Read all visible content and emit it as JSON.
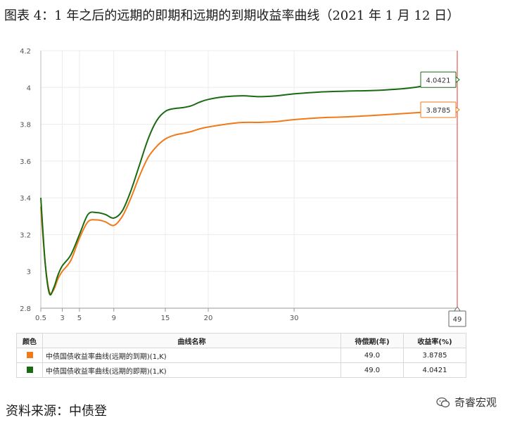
{
  "title": "图表 4：1 年之后的远期的即期和远期的到期收益率曲线（2021 年 1 月 12 日）",
  "source": "资料来源：中债登",
  "brand": "奇睿宏观",
  "chart_data": {
    "type": "line",
    "xlim": [
      0.5,
      49
    ],
    "ylim": [
      2.8,
      4.2
    ],
    "yticks": [
      "2.8",
      "3",
      "3.2",
      "3.4",
      "3.6",
      "3.8",
      "4",
      "4.2"
    ],
    "xticks": [
      "0.5",
      "3",
      "5",
      "9",
      "15",
      "20",
      "30"
    ],
    "cursor_x": 49,
    "cursor_label": "49",
    "grid": true,
    "series": [
      {
        "color": "#f07a1a",
        "label_value": "3.8785",
        "points": [
          [
            0.5,
            3.35
          ],
          [
            1,
            3.05
          ],
          [
            1.5,
            2.89
          ],
          [
            2,
            2.9
          ],
          [
            2.5,
            2.96
          ],
          [
            3,
            3.0
          ],
          [
            4,
            3.06
          ],
          [
            5,
            3.18
          ],
          [
            6,
            3.27
          ],
          [
            7,
            3.28
          ],
          [
            8,
            3.27
          ],
          [
            9,
            3.25
          ],
          [
            10,
            3.3
          ],
          [
            11,
            3.4
          ],
          [
            12,
            3.52
          ],
          [
            13,
            3.62
          ],
          [
            14,
            3.68
          ],
          [
            15,
            3.72
          ],
          [
            16,
            3.74
          ],
          [
            17,
            3.75
          ],
          [
            18,
            3.76
          ],
          [
            19,
            3.775
          ],
          [
            20,
            3.785
          ],
          [
            22,
            3.8
          ],
          [
            24,
            3.81
          ],
          [
            26,
            3.81
          ],
          [
            28,
            3.815
          ],
          [
            30,
            3.825
          ],
          [
            33,
            3.835
          ],
          [
            36,
            3.84
          ],
          [
            40,
            3.85
          ],
          [
            44,
            3.862
          ],
          [
            49,
            3.8785
          ]
        ]
      },
      {
        "color": "#196b12",
        "label_value": "4.0421",
        "points": [
          [
            0.5,
            3.4
          ],
          [
            1,
            3.05
          ],
          [
            1.5,
            2.88
          ],
          [
            2,
            2.91
          ],
          [
            2.5,
            2.98
          ],
          [
            3,
            3.03
          ],
          [
            4,
            3.09
          ],
          [
            5,
            3.2
          ],
          [
            6,
            3.31
          ],
          [
            7,
            3.32
          ],
          [
            8,
            3.31
          ],
          [
            9,
            3.29
          ],
          [
            10,
            3.33
          ],
          [
            11,
            3.44
          ],
          [
            12,
            3.58
          ],
          [
            13,
            3.72
          ],
          [
            14,
            3.82
          ],
          [
            15,
            3.87
          ],
          [
            16,
            3.885
          ],
          [
            17,
            3.89
          ],
          [
            18,
            3.9
          ],
          [
            19,
            3.92
          ],
          [
            20,
            3.935
          ],
          [
            22,
            3.95
          ],
          [
            24,
            3.955
          ],
          [
            26,
            3.95
          ],
          [
            28,
            3.955
          ],
          [
            30,
            3.965
          ],
          [
            33,
            3.975
          ],
          [
            36,
            3.98
          ],
          [
            40,
            3.985
          ],
          [
            44,
            4.0
          ],
          [
            49,
            4.0421
          ]
        ]
      }
    ]
  },
  "table": {
    "headers": [
      "颜色",
      "曲线名称",
      "待偿期(年)",
      "收益率(%)"
    ],
    "rows": [
      {
        "color": "#f07a1a",
        "name": "中债国债收益率曲线(远期的到期)(1,K)",
        "term": "49.0",
        "yield": "3.8785"
      },
      {
        "color": "#196b12",
        "name": "中债国债收益率曲线(远期的即期)(1,K)",
        "term": "49.0",
        "yield": "4.0421"
      }
    ]
  }
}
